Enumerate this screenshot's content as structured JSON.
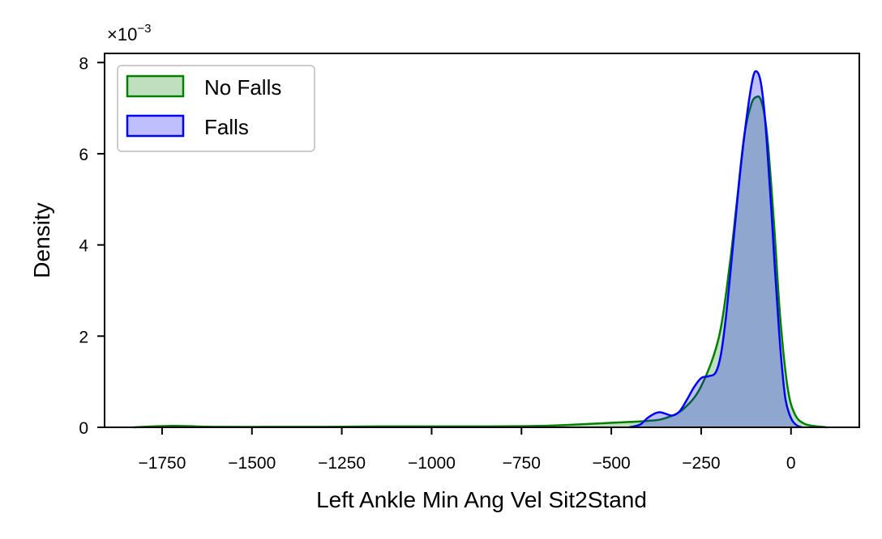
{
  "chart_data": {
    "type": "area",
    "title": "",
    "xlabel": "Left Ankle Min Ang Vel Sit2Stand",
    "ylabel": "Density",
    "y_scale_label": "×10",
    "y_scale_exponent": "−3",
    "xlim": [
      -1910,
      190
    ],
    "ylim": [
      0,
      8.2
    ],
    "x_ticks": [
      -1750,
      -1500,
      -1250,
      -1000,
      -750,
      -500,
      -250,
      0
    ],
    "x_tick_labels": [
      "−1750",
      "−1500",
      "−1250",
      "−1000",
      "−750",
      "−500",
      "−250",
      "0"
    ],
    "y_ticks": [
      0,
      2,
      4,
      6,
      8
    ],
    "y_tick_labels": [
      "0",
      "2",
      "4",
      "6",
      "8"
    ],
    "legend_position": "top-left",
    "series": [
      {
        "name": "No Falls",
        "stroke": "#008000",
        "fill": "#008000",
        "x": [
          -1830,
          -1720,
          -1600,
          -1450,
          -1300,
          -1150,
          -1000,
          -850,
          -700,
          -600,
          -500,
          -400,
          -350,
          -300,
          -250,
          -200,
          -170,
          -150,
          -130,
          -110,
          -95,
          -85,
          -75,
          -65,
          -55,
          -45,
          -30,
          -10,
          10,
          40,
          100
        ],
        "y": [
          0.0,
          0.03,
          0.01,
          0.01,
          0.01,
          0.02,
          0.02,
          0.02,
          0.03,
          0.06,
          0.1,
          0.14,
          0.2,
          0.4,
          0.9,
          2.0,
          3.6,
          5.0,
          6.4,
          7.1,
          7.25,
          7.2,
          6.9,
          6.3,
          5.3,
          4.2,
          2.4,
          0.9,
          0.3,
          0.07,
          0.0
        ]
      },
      {
        "name": "Falls",
        "stroke": "#0000ff",
        "fill": "#0000ff",
        "x": [
          -450,
          -420,
          -400,
          -380,
          -365,
          -350,
          -330,
          -310,
          -290,
          -270,
          -250,
          -230,
          -210,
          -195,
          -180,
          -160,
          -140,
          -120,
          -105,
          -95,
          -85,
          -75,
          -65,
          -55,
          -45,
          -35,
          -25,
          -15,
          0,
          15,
          30
        ],
        "y": [
          0.0,
          0.06,
          0.2,
          0.3,
          0.33,
          0.3,
          0.26,
          0.35,
          0.6,
          0.88,
          1.08,
          1.12,
          1.2,
          1.6,
          2.5,
          4.1,
          5.7,
          7.0,
          7.7,
          7.8,
          7.6,
          7.0,
          6.0,
          4.8,
          3.5,
          2.3,
          1.3,
          0.6,
          0.2,
          0.05,
          0.0
        ]
      }
    ]
  }
}
